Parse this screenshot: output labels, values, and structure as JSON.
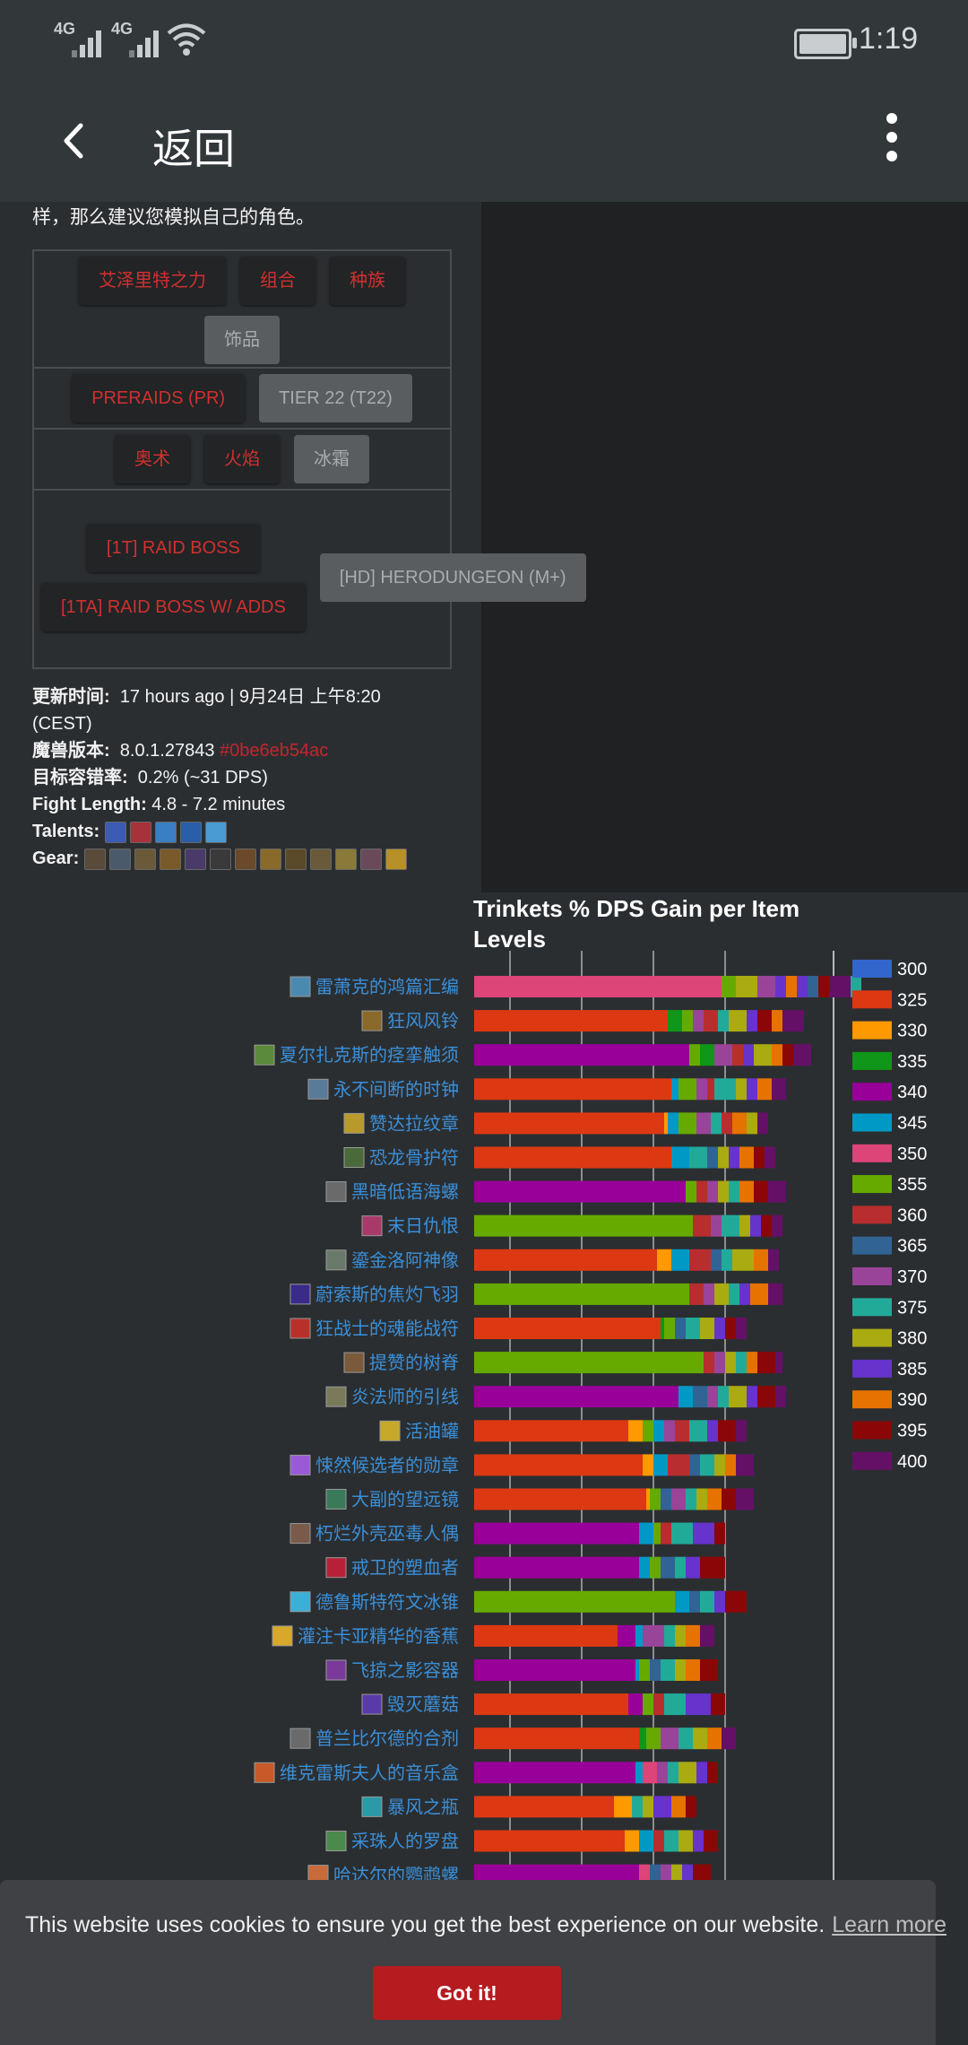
{
  "status_bar": {
    "network_1": "4G",
    "network_2": "4G",
    "time": "1:19"
  },
  "app_bar": {
    "title": "返回"
  },
  "intro_text": "样，那么建议您模拟自己的角色。",
  "filters": {
    "row1": [
      {
        "label": "艾泽里特之力",
        "active": true
      },
      {
        "label": "组合",
        "active": true
      },
      {
        "label": "种族",
        "active": true
      },
      {
        "label": "饰品",
        "active": false
      }
    ],
    "row2": [
      {
        "label": "PRERAIDS (PR)",
        "active": true
      },
      {
        "label": "TIER 22 (T22)",
        "active": false
      }
    ],
    "row3": [
      {
        "label": "奥术",
        "active": true
      },
      {
        "label": "火焰",
        "active": true
      },
      {
        "label": "冰霜",
        "active": false
      }
    ],
    "row4": [
      {
        "label": "[1T] RAID BOSS",
        "active": true
      },
      {
        "label": "[1TA] RAID BOSS W/ ADDS",
        "active": true
      },
      {
        "label": "[HD] HERODUNGEON (M+)",
        "active": false
      }
    ]
  },
  "meta": {
    "updated_label": "更新时间:",
    "updated_value": "17 hours ago | 9月24日 上午8:20",
    "updated_tz": "(CEST)",
    "version_label": "魔兽版本:",
    "version_value": "8.0.1.27843",
    "version_commit": "#0be6eb54ac",
    "error_label": "目标容错率:",
    "error_value": "0.2% (~31 DPS)",
    "fight_label": "Fight Length:",
    "fight_value": "4.8 - 7.2 minutes",
    "talents_label": "Talents:",
    "gear_label": "Gear:"
  },
  "chart_data": {
    "type": "bar",
    "title": "Trinkets % DPS Gain per Item Levels",
    "legend_position": "right",
    "categories": [
      "雷萧克的鸿篇汇编",
      "狂风风铃",
      "夏尔扎克斯的痉挛触须",
      "永不间断的时钟",
      "赞达拉纹章",
      "恐龙骨护符",
      "黑暗低语海螺",
      "末日仇恨",
      "鎏金洛阿神像",
      "蔚索斯的焦灼飞羽",
      "狂战士的魂能战符",
      "提赞的树脊",
      "炎法师的引线",
      "活油罐",
      "悚然候选者的勋章",
      "大副的望远镜",
      "朽烂外壳巫毒人偶",
      "戒卫的塑血者",
      "德鲁斯特符文冰锥",
      "灌注卡亚精华的香蕉",
      "飞掠之影容器",
      "毁灭蘑菇",
      "普兰比尔德的合剂",
      "维克雷斯夫人的音乐盒",
      "暴风之瓶",
      "采珠人的罗盘",
      "哈达尔的鹦鹉螺"
    ],
    "series": [
      {
        "name": "300",
        "color": "#3366cc"
      },
      {
        "name": "325",
        "color": "#dc3912"
      },
      {
        "name": "330",
        "color": "#ff9900"
      },
      {
        "name": "335",
        "color": "#109618"
      },
      {
        "name": "340",
        "color": "#990099"
      },
      {
        "name": "345",
        "color": "#0099c6"
      },
      {
        "name": "350",
        "color": "#dd4477"
      },
      {
        "name": "355",
        "color": "#66aa00"
      },
      {
        "name": "360",
        "color": "#b82e2e"
      },
      {
        "name": "365",
        "color": "#316395"
      },
      {
        "name": "370",
        "color": "#994499"
      },
      {
        "name": "375",
        "color": "#22aa99"
      },
      {
        "name": "380",
        "color": "#aaaa11"
      },
      {
        "name": "385",
        "color": "#6633cc"
      },
      {
        "name": "390",
        "color": "#e67300"
      },
      {
        "name": "395",
        "color": "#8b0707"
      },
      {
        "name": "400",
        "color": "#651067"
      }
    ],
    "bars": [
      {
        "base": 6,
        "base_value": 6.9,
        "segs": [
          [
            7,
            0.4
          ],
          [
            12,
            0.6
          ],
          [
            10,
            0.5
          ],
          [
            13,
            0.3
          ],
          [
            14,
            0.3
          ],
          [
            13,
            0.3
          ],
          [
            9,
            0.3
          ],
          [
            15,
            0.3
          ],
          [
            16,
            0.6
          ],
          [
            11,
            0.3
          ]
        ]
      },
      {
        "base": 1,
        "base_value": 5.4,
        "segs": [
          [
            3,
            0.4
          ],
          [
            7,
            0.3
          ],
          [
            10,
            0.3
          ],
          [
            8,
            0.4
          ],
          [
            11,
            0.3
          ],
          [
            12,
            0.5
          ],
          [
            13,
            0.3
          ],
          [
            15,
            0.4
          ],
          [
            14,
            0.3
          ],
          [
            16,
            0.6
          ]
        ]
      },
      {
        "base": 4,
        "base_value": 6.0,
        "segs": [
          [
            7,
            0.3
          ],
          [
            3,
            0.4
          ],
          [
            10,
            0.5
          ],
          [
            8,
            0.3
          ],
          [
            13,
            0.3
          ],
          [
            12,
            0.5
          ],
          [
            14,
            0.3
          ],
          [
            15,
            0.3
          ],
          [
            16,
            0.5
          ]
        ]
      },
      {
        "base": 1,
        "base_value": 5.5,
        "segs": [
          [
            5,
            0.2
          ],
          [
            7,
            0.5
          ],
          [
            10,
            0.3
          ],
          [
            8,
            0.2
          ],
          [
            11,
            0.6
          ],
          [
            12,
            0.3
          ],
          [
            13,
            0.3
          ],
          [
            14,
            0.4
          ],
          [
            16,
            0.4
          ]
        ]
      },
      {
        "base": 1,
        "base_value": 5.3,
        "segs": [
          [
            2,
            0.1
          ],
          [
            5,
            0.3
          ],
          [
            7,
            0.5
          ],
          [
            10,
            0.4
          ],
          [
            11,
            0.3
          ],
          [
            8,
            0.3
          ],
          [
            14,
            0.4
          ],
          [
            12,
            0.3
          ],
          [
            16,
            0.3
          ]
        ]
      },
      {
        "base": 1,
        "base_value": 5.5,
        "segs": [
          [
            5,
            0.5
          ],
          [
            11,
            0.5
          ],
          [
            9,
            0.3
          ],
          [
            12,
            0.3
          ],
          [
            13,
            0.3
          ],
          [
            14,
            0.4
          ],
          [
            15,
            0.3
          ],
          [
            16,
            0.3
          ]
        ]
      },
      {
        "base": 4,
        "base_value": 5.9,
        "segs": [
          [
            7,
            0.3
          ],
          [
            8,
            0.3
          ],
          [
            10,
            0.3
          ],
          [
            12,
            0.3
          ],
          [
            11,
            0.3
          ],
          [
            14,
            0.4
          ],
          [
            15,
            0.4
          ],
          [
            16,
            0.5
          ]
        ]
      },
      {
        "base": 7,
        "base_value": 6.1,
        "segs": [
          [
            8,
            0.5
          ],
          [
            10,
            0.3
          ],
          [
            11,
            0.5
          ],
          [
            12,
            0.3
          ],
          [
            13,
            0.3
          ],
          [
            15,
            0.3
          ],
          [
            16,
            0.3
          ]
        ]
      },
      {
        "base": 1,
        "base_value": 5.1,
        "segs": [
          [
            2,
            0.4
          ],
          [
            5,
            0.5
          ],
          [
            8,
            0.6
          ],
          [
            9,
            0.3
          ],
          [
            11,
            0.3
          ],
          [
            12,
            0.6
          ],
          [
            14,
            0.4
          ],
          [
            16,
            0.3
          ]
        ]
      },
      {
        "base": 7,
        "base_value": 6.0,
        "segs": [
          [
            8,
            0.4
          ],
          [
            10,
            0.3
          ],
          [
            12,
            0.4
          ],
          [
            11,
            0.3
          ],
          [
            13,
            0.3
          ],
          [
            14,
            0.5
          ],
          [
            16,
            0.4
          ]
        ]
      },
      {
        "base": 1,
        "base_value": 5.2,
        "segs": [
          [
            3,
            0.1
          ],
          [
            7,
            0.3
          ],
          [
            9,
            0.3
          ],
          [
            11,
            0.4
          ],
          [
            12,
            0.4
          ],
          [
            13,
            0.3
          ],
          [
            15,
            0.3
          ],
          [
            16,
            0.3
          ]
        ]
      },
      {
        "base": 7,
        "base_value": 6.4,
        "segs": [
          [
            8,
            0.3
          ],
          [
            10,
            0.3
          ],
          [
            12,
            0.3
          ],
          [
            11,
            0.3
          ],
          [
            14,
            0.3
          ],
          [
            15,
            0.5
          ],
          [
            16,
            0.2
          ]
        ]
      },
      {
        "base": 4,
        "base_value": 5.7,
        "segs": [
          [
            5,
            0.4
          ],
          [
            9,
            0.4
          ],
          [
            10,
            0.3
          ],
          [
            11,
            0.3
          ],
          [
            12,
            0.5
          ],
          [
            13,
            0.3
          ],
          [
            15,
            0.5
          ],
          [
            16,
            0.3
          ]
        ]
      },
      {
        "base": 1,
        "base_value": 4.3,
        "segs": [
          [
            2,
            0.4
          ],
          [
            7,
            0.3
          ],
          [
            5,
            0.3
          ],
          [
            10,
            0.3
          ],
          [
            8,
            0.4
          ],
          [
            11,
            0.5
          ],
          [
            13,
            0.3
          ],
          [
            15,
            0.5
          ],
          [
            16,
            0.3
          ]
        ]
      },
      {
        "base": 1,
        "base_value": 4.7,
        "segs": [
          [
            2,
            0.3
          ],
          [
            5,
            0.4
          ],
          [
            8,
            0.6
          ],
          [
            9,
            0.3
          ],
          [
            11,
            0.4
          ],
          [
            12,
            0.3
          ],
          [
            14,
            0.3
          ],
          [
            16,
            0.5
          ]
        ]
      },
      {
        "base": 1,
        "base_value": 4.8,
        "segs": [
          [
            2,
            0.1
          ],
          [
            7,
            0.3
          ],
          [
            9,
            0.3
          ],
          [
            10,
            0.4
          ],
          [
            11,
            0.3
          ],
          [
            12,
            0.3
          ],
          [
            14,
            0.4
          ],
          [
            15,
            0.4
          ],
          [
            16,
            0.5
          ]
        ]
      },
      {
        "base": 4,
        "base_value": 4.6,
        "segs": [
          [
            5,
            0.4
          ],
          [
            7,
            0.2
          ],
          [
            8,
            0.3
          ],
          [
            11,
            0.6
          ],
          [
            13,
            0.6
          ],
          [
            15,
            0.3
          ]
        ]
      },
      {
        "base": 4,
        "base_value": 4.6,
        "segs": [
          [
            5,
            0.3
          ],
          [
            7,
            0.3
          ],
          [
            9,
            0.4
          ],
          [
            11,
            0.3
          ],
          [
            13,
            0.4
          ],
          [
            15,
            0.7
          ]
        ]
      },
      {
        "base": 7,
        "base_value": 5.6,
        "segs": [
          [
            5,
            0.4
          ],
          [
            9,
            0.3
          ],
          [
            11,
            0.4
          ],
          [
            13,
            0.3
          ],
          [
            15,
            0.6
          ]
        ]
      },
      {
        "base": 1,
        "base_value": 4.0,
        "segs": [
          [
            4,
            0.5
          ],
          [
            5,
            0.2
          ],
          [
            10,
            0.6
          ],
          [
            11,
            0.3
          ],
          [
            12,
            0.3
          ],
          [
            14,
            0.4
          ],
          [
            16,
            0.4
          ]
        ]
      },
      {
        "base": 4,
        "base_value": 4.5,
        "segs": [
          [
            5,
            0.1
          ],
          [
            7,
            0.3
          ],
          [
            9,
            0.3
          ],
          [
            11,
            0.4
          ],
          [
            12,
            0.3
          ],
          [
            14,
            0.4
          ],
          [
            15,
            0.5
          ]
        ]
      },
      {
        "base": 1,
        "base_value": 4.3,
        "segs": [
          [
            4,
            0.4
          ],
          [
            7,
            0.3
          ],
          [
            8,
            0.3
          ],
          [
            11,
            0.6
          ],
          [
            13,
            0.7
          ],
          [
            15,
            0.4
          ]
        ]
      },
      {
        "base": 1,
        "base_value": 4.6,
        "segs": [
          [
            3,
            0.2
          ],
          [
            7,
            0.4
          ],
          [
            10,
            0.5
          ],
          [
            11,
            0.4
          ],
          [
            12,
            0.4
          ],
          [
            14,
            0.4
          ],
          [
            16,
            0.4
          ]
        ]
      },
      {
        "base": 4,
        "base_value": 4.5,
        "segs": [
          [
            5,
            0.2
          ],
          [
            6,
            0.4
          ],
          [
            10,
            0.3
          ],
          [
            11,
            0.3
          ],
          [
            12,
            0.5
          ],
          [
            13,
            0.3
          ],
          [
            15,
            0.3
          ]
        ]
      },
      {
        "base": 1,
        "base_value": 3.9,
        "segs": [
          [
            2,
            0.5
          ],
          [
            11,
            0.3
          ],
          [
            12,
            0.3
          ],
          [
            13,
            0.5
          ],
          [
            14,
            0.4
          ],
          [
            15,
            0.3
          ]
        ]
      },
      {
        "base": 1,
        "base_value": 4.2,
        "segs": [
          [
            2,
            0.4
          ],
          [
            5,
            0.4
          ],
          [
            8,
            0.3
          ],
          [
            11,
            0.4
          ],
          [
            12,
            0.4
          ],
          [
            13,
            0.3
          ],
          [
            15,
            0.4
          ]
        ]
      },
      {
        "base": 4,
        "base_value": 4.6,
        "segs": [
          [
            6,
            0.3
          ],
          [
            9,
            0.3
          ],
          [
            10,
            0.3
          ],
          [
            12,
            0.3
          ],
          [
            13,
            0.3
          ],
          [
            15,
            0.5
          ]
        ]
      }
    ]
  },
  "cookie": {
    "message": "This website uses cookies to ensure you get the best experience on our website.",
    "learn_more": "Learn more",
    "button": "Got it!"
  }
}
